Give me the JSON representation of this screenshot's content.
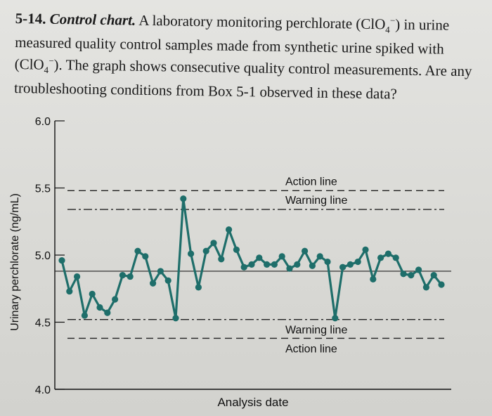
{
  "problem": {
    "number": "5-14.",
    "title": "Control chart.",
    "text_before": " A laboratory monitoring perchlorate (ClO",
    "text_mid": ") in urine measured quality control samples made from synthetic urine spiked with (ClO",
    "text_after": "). The graph shows consecutive quality control measurements. Are any troubleshooting conditions from Box 5-1 observed in these data?",
    "ion_subscript": "4",
    "ion_charge": "−"
  },
  "chart_data": {
    "type": "line",
    "title": "",
    "xlabel": "Analysis date",
    "ylabel": "Urinary perchlorate (ng/mL)",
    "ylim": [
      4.0,
      6.0
    ],
    "yticks": [
      {
        "value": 6.0,
        "label": "6.0"
      },
      {
        "value": 5.5,
        "label": "5.5"
      },
      {
        "value": 5.0,
        "label": "5.0"
      },
      {
        "value": 4.5,
        "label": "4.5"
      },
      {
        "value": 4.0,
        "label": "4.0"
      }
    ],
    "x": [
      1,
      2,
      3,
      4,
      5,
      6,
      7,
      8,
      9,
      10,
      11,
      12,
      13,
      14,
      15,
      16,
      17,
      18,
      19,
      20,
      21,
      22,
      23,
      24,
      25,
      26,
      27,
      28,
      29,
      30,
      31,
      32,
      33,
      34,
      35,
      36,
      37,
      38,
      39,
      40,
      41,
      42,
      43,
      44,
      45,
      46,
      47,
      48,
      49,
      50,
      51
    ],
    "values": [
      4.96,
      4.73,
      4.84,
      4.55,
      4.71,
      4.61,
      4.57,
      4.67,
      4.85,
      4.84,
      5.03,
      4.99,
      4.79,
      4.88,
      4.81,
      4.53,
      5.42,
      5.01,
      4.76,
      5.03,
      5.09,
      4.97,
      5.19,
      5.04,
      4.91,
      4.93,
      4.98,
      4.93,
      4.93,
      4.99,
      4.9,
      4.93,
      5.03,
      4.92,
      4.99,
      4.95,
      4.53,
      4.91,
      4.93,
      4.95,
      5.04,
      4.82,
      4.98,
      5.01,
      4.98,
      4.86,
      4.85,
      4.89,
      4.76,
      4.85,
      4.78
    ],
    "center_line": 4.88,
    "reference_lines": [
      {
        "name": "Action line",
        "value": 5.48,
        "style": "dashed"
      },
      {
        "name": "Warning line",
        "value": 5.34,
        "style": "dashdot"
      },
      {
        "name": "Warning line",
        "value": 4.52,
        "style": "dashdot"
      },
      {
        "name": "Action line",
        "value": 4.38,
        "style": "dashed"
      }
    ],
    "line_color": "#1e6e6a",
    "grid": false
  }
}
